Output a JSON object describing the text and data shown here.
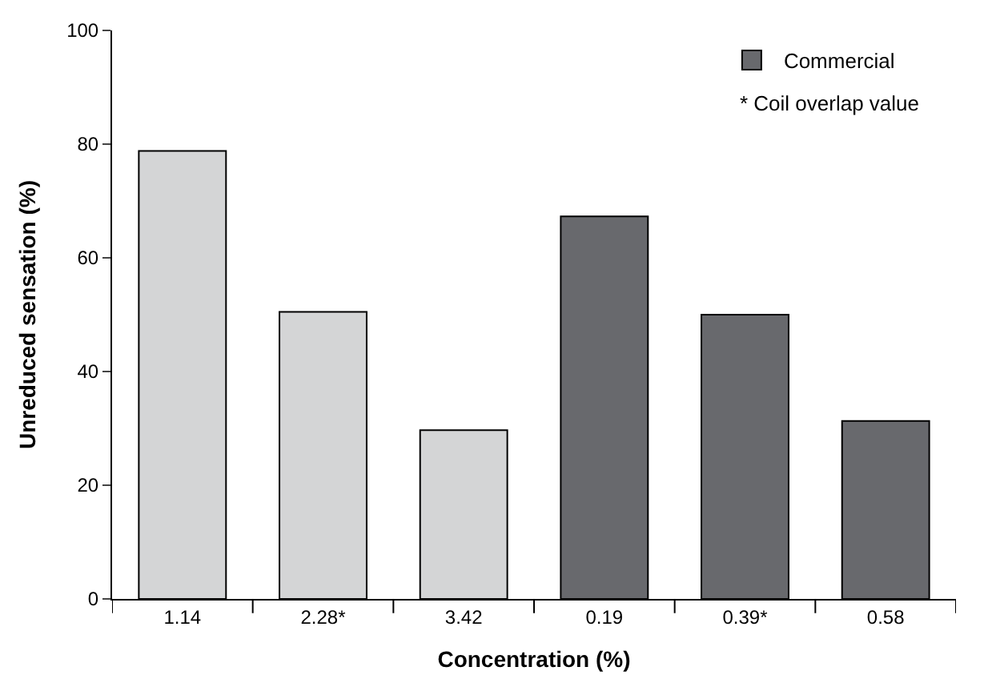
{
  "chart_data": {
    "type": "bar",
    "xlabel": "Concentration (%)",
    "ylabel": "Unreduced sensation (%)",
    "categories": [
      "1.14",
      "2.28*",
      "3.42",
      "0.19",
      "0.39*",
      "0.58"
    ],
    "series": [
      {
        "color": "#d4d5d6",
        "values": [
          78.8,
          50.5,
          29.7,
          null,
          null,
          null
        ]
      },
      {
        "name": "Commercial",
        "color": "#68696d",
        "values": [
          null,
          null,
          null,
          67.3,
          50.0,
          31.3
        ]
      }
    ],
    "ylim": [
      0,
      100
    ],
    "yticks": [
      0,
      20,
      40,
      60,
      80,
      100
    ],
    "legend": "top right",
    "annotations": [
      "* Coil overlap value"
    ]
  }
}
